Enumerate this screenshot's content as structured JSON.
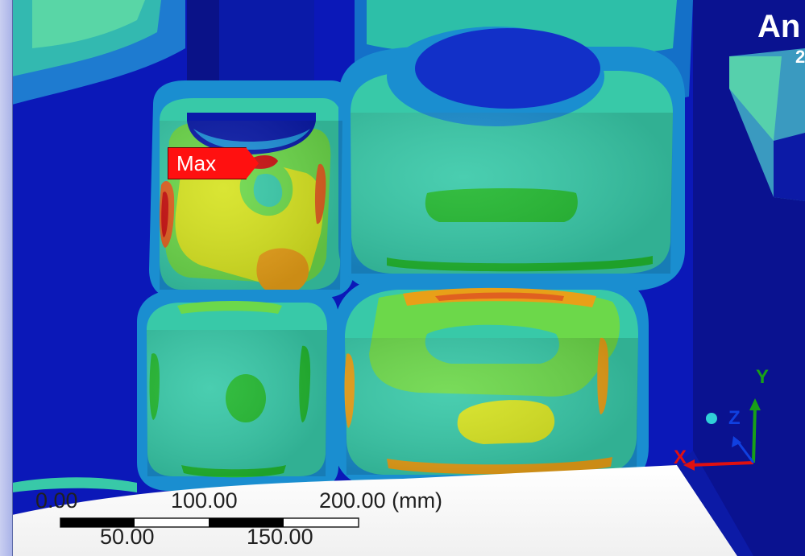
{
  "viewer": {
    "max_label": "Max",
    "brand_text": "An",
    "brand_sub": "2"
  },
  "scale_bar": {
    "top_labels": [
      "0.00",
      "100.00",
      "200.00 (mm)"
    ],
    "bottom_labels": [
      "50.00",
      "150.00"
    ]
  },
  "triad": {
    "x_label": "X",
    "y_label": "Y",
    "z_label": "Z"
  },
  "colors": {
    "background_blue": "#0b18b8",
    "max_red": "#ff1010",
    "x_axis": "#e01010",
    "y_axis": "#18a018",
    "z_axis": "#1040e0"
  }
}
